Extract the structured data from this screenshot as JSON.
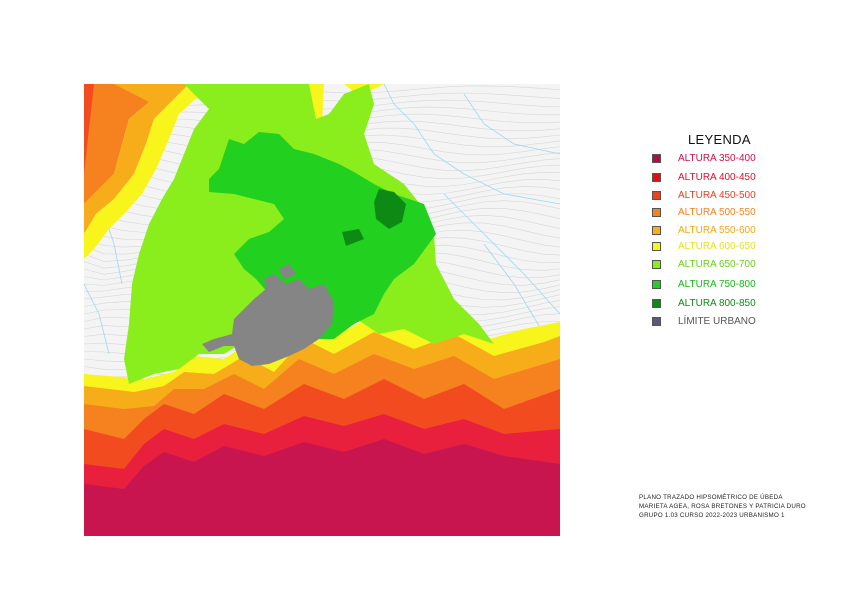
{
  "map": {
    "type": "hypsometric-map",
    "layers": [
      {
        "id": "altura-350-400",
        "color": "#c8154f"
      },
      {
        "id": "altura-400-450",
        "color": "#e8203d"
      },
      {
        "id": "altura-450-500",
        "color": "#f24b1f"
      },
      {
        "id": "altura-500-550",
        "color": "#f5821e"
      },
      {
        "id": "altura-550-600",
        "color": "#f7ad1a"
      },
      {
        "id": "altura-600-650",
        "color": "#f8f51c"
      },
      {
        "id": "altura-650-700",
        "color": "#8aee1d"
      },
      {
        "id": "altura-750-800",
        "color": "#22d01f"
      },
      {
        "id": "altura-800-850",
        "color": "#0d8a14"
      },
      {
        "id": "limite-urbano",
        "color": "#858585"
      }
    ],
    "background_color": "#f4f4f4",
    "contour_color": "#cfcfcf",
    "river_color": "#9fd6f2"
  },
  "legend": {
    "title": "LEYENDA",
    "items": [
      {
        "label": "ALTURA 350-400",
        "swatch": "#b0103f",
        "text_color": "#d0104a"
      },
      {
        "label": "ALTURA 400-450",
        "swatch": "#e01010",
        "text_color": "#e0102a"
      },
      {
        "label": "ALTURA 450-500",
        "swatch": "#f0401a",
        "text_color": "#f03c1a"
      },
      {
        "label": "ALTURA 500-550",
        "swatch": "#f5821e",
        "text_color": "#f5821e"
      },
      {
        "label": "ALTURA 550-600",
        "swatch": "#f7b01a",
        "text_color": "#f0a810"
      },
      {
        "label": "ALTURA 600-650",
        "swatch": "#f8f51c",
        "text_color": "#e8e020"
      },
      {
        "label": "ALTURA 650-700",
        "swatch": "#8aee1d",
        "text_color": "#6ad010"
      },
      {
        "label": "ALTURA 750-800",
        "swatch": "#22d01f",
        "text_color": "#18b818"
      },
      {
        "label": "ALTURA 800-850",
        "swatch": "#0d8a14",
        "text_color": "#0d8a14"
      },
      {
        "label": "LÍMITE URBANO",
        "swatch": "#5a5a78",
        "text_color": "#555555"
      }
    ]
  },
  "credits": {
    "line1": "PLANO TRAZADO HIPSOMÉTRICO DE ÚBEDA",
    "line2": "MARIETA AGEA, ROSA BRETONES Y PATRICIA DURO",
    "line3": "GRUPO 1.03  CURSO 2022-2023  URBANISMO 1"
  }
}
